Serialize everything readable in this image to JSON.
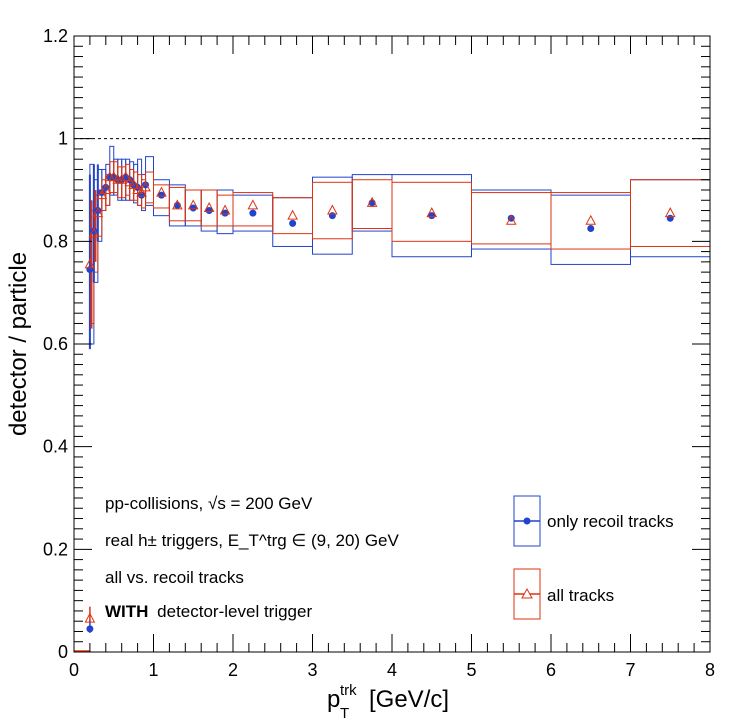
{
  "chart_data": {
    "type": "scatter",
    "xlabel": "p",
    "xlabel_sup": "trk",
    "xlabel_sub": "T",
    "xlabel_unit": "[GeV/c]",
    "ylabel": "detector / particle",
    "xlim": [
      0,
      8
    ],
    "ylim": [
      0,
      1.2
    ],
    "x_ticks": [
      "0",
      "1",
      "2",
      "3",
      "4",
      "5",
      "6",
      "7",
      "8"
    ],
    "y_ticks": [
      "0",
      "0.2",
      "0.4",
      "0.6",
      "0.8",
      "1",
      "1.2"
    ],
    "reference_line": 1.0,
    "annotations": [
      {
        "id": "line1",
        "text": "pp-collisions, √s = 200 GeV"
      },
      {
        "id": "line2",
        "text": "real h± triggers, E_T^trg ∈ (9, 20) GeV"
      },
      {
        "id": "line3",
        "text": "all vs. recoil tracks"
      },
      {
        "id": "line4_bold",
        "text": "WITH"
      },
      {
        "id": "line4_rest",
        "text": "detector-level trigger"
      }
    ],
    "legend_position": "bottom-right",
    "series": [
      {
        "name": "only recoil tracks",
        "color": "#2244cc",
        "marker": "filled-circle",
        "x": [
          0.2,
          0.25,
          0.3,
          0.35,
          0.4,
          0.45,
          0.5,
          0.55,
          0.6,
          0.65,
          0.7,
          0.75,
          0.8,
          0.85,
          0.9,
          1.1,
          1.3,
          1.5,
          1.7,
          1.9,
          2.25,
          2.75,
          3.25,
          3.75,
          4.5,
          5.5,
          6.5,
          7.5
        ],
        "y": [
          0.745,
          0.82,
          0.86,
          0.895,
          0.905,
          0.925,
          0.925,
          0.92,
          0.92,
          0.925,
          0.92,
          0.91,
          0.905,
          0.89,
          0.91,
          0.89,
          0.87,
          0.865,
          0.86,
          0.855,
          0.855,
          0.835,
          0.85,
          0.875,
          0.85,
          0.845,
          0.825,
          0.845
        ],
        "sys_lo": [
          0.6,
          0.72,
          0.8,
          0.86,
          0.87,
          0.89,
          0.89,
          0.88,
          0.88,
          0.88,
          0.88,
          0.875,
          0.87,
          0.86,
          0.87,
          0.85,
          0.83,
          0.83,
          0.82,
          0.815,
          0.82,
          0.79,
          0.775,
          0.82,
          0.77,
          0.785,
          0.755,
          0.77
        ],
        "sys_hi": [
          0.95,
          0.92,
          0.94,
          0.94,
          0.95,
          0.985,
          0.96,
          0.96,
          0.96,
          0.96,
          0.955,
          0.95,
          0.96,
          0.93,
          0.965,
          0.92,
          0.91,
          0.9,
          0.9,
          0.9,
          0.89,
          0.885,
          0.925,
          0.93,
          0.93,
          0.9,
          0.89,
          0.92
        ],
        "x_lo": [
          0.2,
          0.25,
          0.3,
          0.35,
          0.4,
          0.45,
          0.5,
          0.55,
          0.6,
          0.65,
          0.7,
          0.75,
          0.8,
          0.85,
          0.9,
          1.0,
          1.2,
          1.4,
          1.6,
          1.8,
          2.0,
          2.5,
          3.0,
          3.5,
          4.0,
          5.0,
          6.0,
          7.0
        ],
        "x_hi": [
          0.25,
          0.3,
          0.35,
          0.4,
          0.45,
          0.5,
          0.55,
          0.6,
          0.65,
          0.7,
          0.75,
          0.8,
          0.85,
          0.9,
          1.0,
          1.2,
          1.4,
          1.6,
          1.8,
          2.0,
          2.5,
          3.0,
          3.5,
          4.0,
          5.0,
          6.0,
          7.0,
          8.0
        ]
      },
      {
        "name": "all tracks",
        "color": "#dd3311",
        "marker": "open-triangle",
        "x": [
          0.2,
          0.25,
          0.3,
          0.35,
          0.4,
          0.45,
          0.5,
          0.55,
          0.6,
          0.65,
          0.7,
          0.75,
          0.8,
          0.85,
          0.9,
          1.1,
          1.3,
          1.5,
          1.7,
          1.9,
          2.25,
          2.75,
          3.25,
          3.75,
          4.5,
          5.5,
          6.5,
          7.5
        ],
        "y": [
          0.755,
          0.815,
          0.855,
          0.89,
          0.9,
          0.925,
          0.925,
          0.92,
          0.92,
          0.925,
          0.915,
          0.91,
          0.9,
          0.895,
          0.905,
          0.895,
          0.87,
          0.87,
          0.865,
          0.86,
          0.87,
          0.85,
          0.86,
          0.875,
          0.855,
          0.84,
          0.84,
          0.855
        ],
        "sys_lo": [
          0.64,
          0.74,
          0.81,
          0.86,
          0.87,
          0.895,
          0.895,
          0.885,
          0.885,
          0.89,
          0.88,
          0.88,
          0.87,
          0.865,
          0.875,
          0.865,
          0.84,
          0.84,
          0.83,
          0.83,
          0.83,
          0.815,
          0.805,
          0.825,
          0.8,
          0.795,
          0.785,
          0.79
        ],
        "sys_hi": [
          0.86,
          0.89,
          0.9,
          0.92,
          0.93,
          0.955,
          0.955,
          0.945,
          0.945,
          0.95,
          0.94,
          0.935,
          0.93,
          0.92,
          0.935,
          0.91,
          0.905,
          0.9,
          0.9,
          0.89,
          0.895,
          0.885,
          0.915,
          0.92,
          0.915,
          0.895,
          0.895,
          0.92
        ],
        "x_lo": [
          0.2,
          0.25,
          0.3,
          0.35,
          0.4,
          0.45,
          0.5,
          0.55,
          0.6,
          0.65,
          0.7,
          0.75,
          0.8,
          0.85,
          0.9,
          1.0,
          1.2,
          1.4,
          1.6,
          1.8,
          2.0,
          2.5,
          3.0,
          3.5,
          4.0,
          5.0,
          6.0,
          7.0
        ],
        "x_hi": [
          0.25,
          0.3,
          0.35,
          0.4,
          0.45,
          0.5,
          0.55,
          0.6,
          0.65,
          0.7,
          0.75,
          0.8,
          0.85,
          0.9,
          1.0,
          1.2,
          1.4,
          1.6,
          1.8,
          2.0,
          2.5,
          3.0,
          3.5,
          4.0,
          5.0,
          6.0,
          7.0,
          8.0
        ]
      }
    ],
    "extra_points": [
      {
        "series": "only recoil tracks",
        "x": 0.2,
        "y": 0.045
      },
      {
        "series": "all tracks",
        "x": 0.2,
        "y": 0.065
      }
    ]
  },
  "legend": {
    "recoil_label": "only recoil tracks",
    "all_label": "all tracks"
  }
}
